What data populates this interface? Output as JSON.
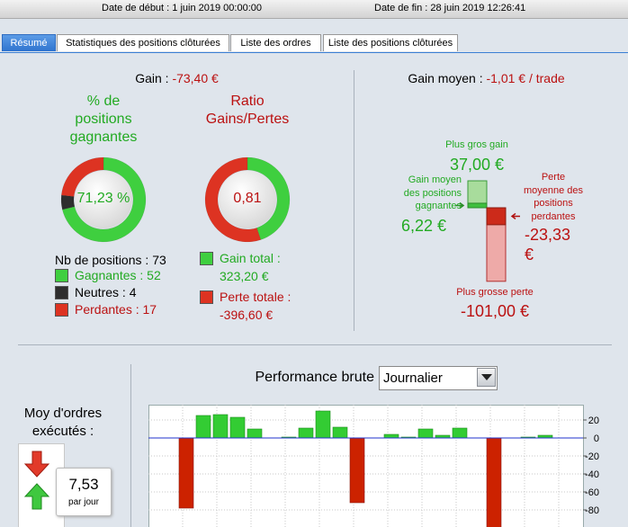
{
  "header": {
    "start_label": "Date de début :",
    "start": "1 juin 2019 00:00:00",
    "end_label": "Date de fin :",
    "end": "28 juin 2019 12:26:41"
  },
  "tabs": [
    "Résumé",
    "Statistiques des positions clôturées",
    "Liste des ordres",
    "Liste des positions clôturées"
  ],
  "summary": {
    "gain_label": "Gain :",
    "gain": "-73,40 €",
    "win_title": [
      "% de",
      "positions",
      "gagnantes"
    ],
    "win_rate": "71,23 %",
    "ratio_title": [
      "Ratio",
      "Gains/Pertes"
    ],
    "ratio": "0,81",
    "positions_label": "Nb de positions :",
    "positions": 73,
    "counts": [
      {
        "name": "Gagnantes :",
        "value": 52,
        "color": "#3fcf3f"
      },
      {
        "name": "Neutres :",
        "value": 4,
        "color": "#2e2e2e"
      },
      {
        "name": "Perdantes :",
        "value": 17,
        "color": "#dd3322"
      }
    ],
    "totals": [
      {
        "name": "Gain total :",
        "value": 323.2,
        "label": "323,20 €",
        "color": "#3fcf3f"
      },
      {
        "name": "Perte totale :",
        "value": -396.6,
        "label": "-396,60 €",
        "color": "#dd3322"
      }
    ]
  },
  "average": {
    "title": "Gain moyen :",
    "value": "-1,01 € / trade",
    "max_gain": {
      "name": "Plus gros gain",
      "value": 37,
      "label": "37,00 €"
    },
    "avg_gain": {
      "name": [
        "Gain moyen",
        "des positions",
        "gagnantes"
      ],
      "value": 6.22,
      "label": "6,22 €"
    },
    "avg_loss": {
      "name": [
        "Perte",
        "moyenne des",
        "positions",
        "perdantes"
      ],
      "value": -23.33,
      "label": "-23,33 €"
    },
    "max_loss": {
      "name": "Plus grosse perte",
      "value": -101,
      "label": "-101,00 €"
    }
  },
  "orders": {
    "title": [
      "Moy d'ordres",
      "exécutés :"
    ],
    "value": "7,53",
    "unit": "par jour"
  },
  "chart_data": {
    "type": "bar",
    "title": "Performance brute",
    "period": "Journalier",
    "categories": [
      null,
      null,
      null,
      null,
      null,
      null,
      null,
      null,
      null,
      null,
      null,
      null,
      null,
      null,
      null,
      null,
      null,
      null,
      null,
      null,
      null,
      null,
      null,
      null
    ],
    "values": [
      null,
      -78,
      25,
      26,
      23,
      10,
      null,
      1,
      11,
      30,
      12,
      -72,
      null,
      4,
      1,
      10,
      3,
      11,
      null,
      -101,
      null,
      1,
      3,
      null
    ],
    "ylim": [
      -99,
      37
    ],
    "yticks": [
      20,
      0,
      -20,
      -40,
      -60,
      -80
    ],
    "colors": {
      "positive": "#33cc33",
      "negative": "#cc2200",
      "zero_line": "#2233cc"
    },
    "grid": true
  }
}
